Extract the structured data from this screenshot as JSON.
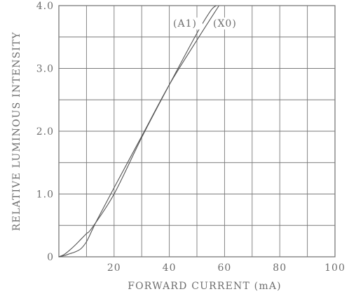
{
  "chart_data": {
    "type": "line",
    "xlabel": "FORWARD CURRENT (mA)",
    "ylabel": "RELATIVE LUMINOUS INTENSITY",
    "xlim": [
      0,
      100
    ],
    "ylim": [
      0,
      4.0
    ],
    "grid": true,
    "x_ticks": [
      {
        "value": 20,
        "label": "20"
      },
      {
        "value": 40,
        "label": "40"
      },
      {
        "value": 60,
        "label": "60"
      },
      {
        "value": 80,
        "label": "80"
      },
      {
        "value": 100,
        "label": "100"
      }
    ],
    "y_ticks": [
      {
        "value": 0,
        "label": "0"
      },
      {
        "value": 1.0,
        "label": "1.0"
      },
      {
        "value": 2.0,
        "label": "2.0"
      },
      {
        "value": 3.0,
        "label": "3.0"
      },
      {
        "value": 4.0,
        "label": "4.0"
      }
    ],
    "series": [
      {
        "name": "(A1)",
        "x": [
          0,
          2,
          4,
          6,
          8,
          10,
          12,
          20,
          30,
          40,
          50,
          55,
          57
        ],
        "y": [
          0,
          0.04,
          0.11,
          0.19,
          0.28,
          0.37,
          0.46,
          1.0,
          1.9,
          2.74,
          3.56,
          3.92,
          4.0
        ]
      },
      {
        "name": "(X0)",
        "x": [
          0,
          2,
          4,
          6,
          8,
          10,
          12,
          14,
          20,
          30,
          40,
          50,
          58
        ],
        "y": [
          0,
          0.02,
          0.05,
          0.08,
          0.13,
          0.24,
          0.42,
          0.6,
          1.1,
          1.92,
          2.74,
          3.45,
          4.0
        ]
      }
    ]
  }
}
